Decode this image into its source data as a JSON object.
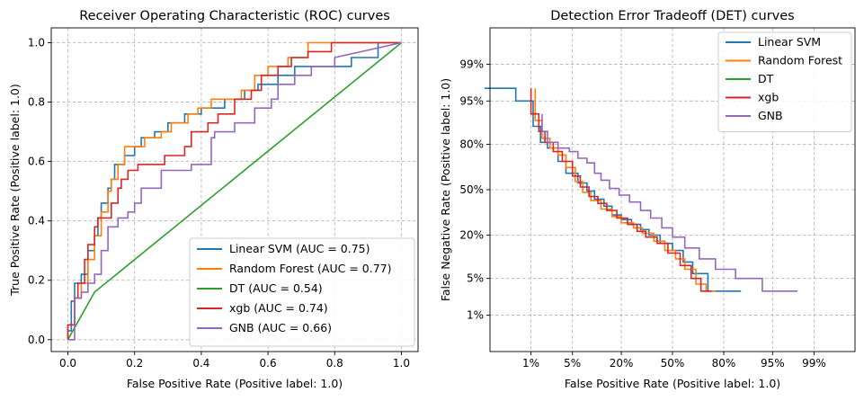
{
  "colors": {
    "Linear SVM": "#1f77b4",
    "Random Forest": "#ff7f0e",
    "DT": "#2ca02c",
    "xgb": "#d62728",
    "GNB": "#9467bd"
  },
  "chart_data": [
    {
      "type": "line",
      "title": "Receiver Operating Characteristic (ROC) curves",
      "xlabel": "False Positive Rate (Positive label: 1.0)",
      "ylabel": "True Positive Rate (Positive label: 1.0)",
      "xlim": [
        -0.05,
        1.05
      ],
      "ylim": [
        -0.04,
        1.05
      ],
      "xticks": [
        0.0,
        0.2,
        0.4,
        0.6,
        0.8,
        1.0
      ],
      "xtick_labels": [
        "0.0",
        "0.2",
        "0.4",
        "0.6",
        "0.8",
        "1.0"
      ],
      "yticks": [
        0.0,
        0.2,
        0.4,
        0.6,
        0.8,
        1.0
      ],
      "ytick_labels": [
        "0.0",
        "0.2",
        "0.4",
        "0.6",
        "0.8",
        "1.0"
      ],
      "grid": true,
      "legend_position": "lower-right",
      "series": [
        {
          "name": "Linear SVM (AUC = 0.75)",
          "color_key": "Linear SVM",
          "x": [
            0,
            0,
            0.01,
            0.01,
            0.02,
            0.02,
            0.04,
            0.04,
            0.06,
            0.06,
            0.08,
            0.08,
            0.09,
            0.09,
            0.1,
            0.1,
            0.12,
            0.12,
            0.13,
            0.13,
            0.14,
            0.14,
            0.17,
            0.17,
            0.2,
            0.2,
            0.22,
            0.22,
            0.26,
            0.26,
            0.3,
            0.3,
            0.35,
            0.35,
            0.4,
            0.4,
            0.47,
            0.47,
            0.53,
            0.53,
            0.57,
            0.57,
            0.63,
            0.63,
            0.68,
            0.68,
            0.78,
            0.78,
            0.85,
            0.85,
            0.93,
            0.93,
            1.0
          ],
          "y": [
            0,
            0.03,
            0.03,
            0.13,
            0.13,
            0.19,
            0.19,
            0.22,
            0.22,
            0.3,
            0.3,
            0.35,
            0.35,
            0.41,
            0.41,
            0.46,
            0.46,
            0.51,
            0.51,
            0.54,
            0.54,
            0.59,
            0.59,
            0.62,
            0.62,
            0.65,
            0.65,
            0.68,
            0.68,
            0.7,
            0.7,
            0.73,
            0.73,
            0.76,
            0.76,
            0.78,
            0.78,
            0.81,
            0.81,
            0.84,
            0.84,
            0.86,
            0.86,
            0.89,
            0.89,
            0.92,
            0.92,
            0.92,
            0.92,
            0.95,
            0.95,
            1.0,
            1.0
          ]
        },
        {
          "name": "Random Forest (AUC = 0.77)",
          "color_key": "Random Forest",
          "x": [
            0,
            0,
            0.02,
            0.02,
            0.04,
            0.04,
            0.06,
            0.06,
            0.08,
            0.08,
            0.1,
            0.1,
            0.12,
            0.12,
            0.13,
            0.13,
            0.15,
            0.15,
            0.17,
            0.17,
            0.21,
            0.21,
            0.23,
            0.23,
            0.28,
            0.28,
            0.31,
            0.31,
            0.36,
            0.36,
            0.39,
            0.39,
            0.43,
            0.43,
            0.48,
            0.48,
            0.52,
            0.52,
            0.56,
            0.56,
            0.6,
            0.6,
            0.66,
            0.66,
            0.72,
            0.72,
            0.8,
            0.8,
            0.86,
            0.86,
            1.0
          ],
          "y": [
            0,
            0.05,
            0.05,
            0.14,
            0.14,
            0.19,
            0.19,
            0.27,
            0.27,
            0.35,
            0.35,
            0.43,
            0.43,
            0.5,
            0.5,
            0.54,
            0.54,
            0.59,
            0.59,
            0.65,
            0.65,
            0.65,
            0.65,
            0.68,
            0.68,
            0.7,
            0.7,
            0.73,
            0.73,
            0.76,
            0.76,
            0.78,
            0.78,
            0.81,
            0.81,
            0.81,
            0.81,
            0.84,
            0.84,
            0.89,
            0.89,
            0.92,
            0.92,
            0.95,
            0.95,
            1.0,
            1.0,
            1.0,
            1.0,
            1.0,
            1.0
          ]
        },
        {
          "name": "DT (AUC = 0.54)",
          "color_key": "DT",
          "x": [
            0,
            0.08,
            1.0
          ],
          "y": [
            0,
            0.16,
            1.0
          ]
        },
        {
          "name": "xgb (AUC = 0.74)",
          "color_key": "xgb",
          "x": [
            0,
            0,
            0.02,
            0.02,
            0.03,
            0.03,
            0.05,
            0.05,
            0.06,
            0.06,
            0.08,
            0.08,
            0.09,
            0.09,
            0.13,
            0.13,
            0.15,
            0.15,
            0.16,
            0.16,
            0.18,
            0.18,
            0.21,
            0.21,
            0.23,
            0.23,
            0.29,
            0.29,
            0.35,
            0.35,
            0.37,
            0.37,
            0.42,
            0.42,
            0.45,
            0.45,
            0.5,
            0.5,
            0.55,
            0.55,
            0.58,
            0.58,
            0.63,
            0.63,
            0.67,
            0.67,
            0.72,
            0.72,
            0.79,
            0.79,
            1.0
          ],
          "y": [
            0,
            0.05,
            0.05,
            0.14,
            0.14,
            0.19,
            0.19,
            0.27,
            0.27,
            0.32,
            0.32,
            0.38,
            0.38,
            0.41,
            0.41,
            0.46,
            0.46,
            0.51,
            0.51,
            0.54,
            0.54,
            0.57,
            0.57,
            0.59,
            0.59,
            0.59,
            0.59,
            0.62,
            0.62,
            0.65,
            0.65,
            0.7,
            0.7,
            0.73,
            0.73,
            0.76,
            0.76,
            0.81,
            0.81,
            0.84,
            0.84,
            0.89,
            0.89,
            0.92,
            0.92,
            0.95,
            0.95,
            0.97,
            0.97,
            1.0,
            1.0
          ]
        },
        {
          "name": "GNB (AUC = 0.66)",
          "color_key": "GNB",
          "x": [
            0,
            0.02,
            0.02,
            0.04,
            0.04,
            0.06,
            0.06,
            0.08,
            0.08,
            0.1,
            0.1,
            0.12,
            0.12,
            0.15,
            0.15,
            0.18,
            0.18,
            0.2,
            0.2,
            0.22,
            0.22,
            0.28,
            0.28,
            0.31,
            0.31,
            0.37,
            0.37,
            0.43,
            0.43,
            0.44,
            0.44,
            0.5,
            0.5,
            0.56,
            0.56,
            0.61,
            0.61,
            0.63,
            0.63,
            0.68,
            0.68,
            0.73,
            0.73,
            0.8,
            0.8,
            1.0
          ],
          "y": [
            0,
            0,
            0.14,
            0.14,
            0.16,
            0.16,
            0.19,
            0.19,
            0.22,
            0.22,
            0.3,
            0.3,
            0.38,
            0.38,
            0.41,
            0.41,
            0.43,
            0.43,
            0.46,
            0.46,
            0.51,
            0.51,
            0.57,
            0.57,
            0.57,
            0.57,
            0.59,
            0.59,
            0.68,
            0.68,
            0.7,
            0.7,
            0.73,
            0.73,
            0.78,
            0.78,
            0.81,
            0.81,
            0.86,
            0.86,
            0.89,
            0.89,
            0.92,
            0.92,
            0.95,
            1.0
          ]
        }
      ]
    },
    {
      "type": "line",
      "title": "Detection Error Tradeoff (DET) curves",
      "xlabel": "False Positive Rate (Positive label: 1.0)",
      "ylabel": "False Negative Rate (Positive label: 1.0)",
      "scale": "normal-deviate (probit)",
      "xlim_probit": [
        -3.0,
        3.0
      ],
      "ylim_probit": [
        -3.0,
        3.0
      ],
      "xticks": [
        0.01,
        0.05,
        0.2,
        0.5,
        0.8,
        0.95,
        0.99
      ],
      "xtick_labels": [
        "1%",
        "5%",
        "20%",
        "50%",
        "80%",
        "95%",
        "99%"
      ],
      "yticks": [
        0.01,
        0.05,
        0.2,
        0.5,
        0.8,
        0.95,
        0.99
      ],
      "ytick_labels": [
        "1%",
        "5%",
        "20%",
        "50%",
        "80%",
        "95%",
        "99%"
      ],
      "grid": true,
      "legend_position": "upper-right",
      "series": [
        {
          "name": "Linear SVM",
          "color_key": "Linear SVM",
          "x": [
            0.001,
            0.005,
            0.005,
            0.011,
            0.011,
            0.015,
            0.015,
            0.02,
            0.02,
            0.03,
            0.03,
            0.04,
            0.04,
            0.06,
            0.06,
            0.08,
            0.08,
            0.1,
            0.1,
            0.13,
            0.13,
            0.16,
            0.16,
            0.2,
            0.2,
            0.25,
            0.25,
            0.3,
            0.3,
            0.35,
            0.35,
            0.42,
            0.42,
            0.5,
            0.5,
            0.57,
            0.57,
            0.63,
            0.63,
            0.72,
            0.72,
            0.82,
            0.82,
            0.87
          ],
          "y": [
            0.97,
            0.97,
            0.95,
            0.95,
            0.88,
            0.88,
            0.81,
            0.81,
            0.78,
            0.78,
            0.7,
            0.7,
            0.62,
            0.62,
            0.55,
            0.55,
            0.49,
            0.49,
            0.43,
            0.43,
            0.38,
            0.38,
            0.32,
            0.32,
            0.29,
            0.29,
            0.26,
            0.26,
            0.23,
            0.23,
            0.2,
            0.2,
            0.16,
            0.16,
            0.13,
            0.13,
            0.09,
            0.09,
            0.06,
            0.06,
            0.03,
            0.03,
            0.03,
            0.03
          ]
        },
        {
          "name": "Random Forest",
          "color_key": "Random Forest",
          "x": [
            0.012,
            0.012,
            0.016,
            0.016,
            0.022,
            0.022,
            0.03,
            0.03,
            0.04,
            0.04,
            0.055,
            0.055,
            0.07,
            0.07,
            0.09,
            0.09,
            0.12,
            0.12,
            0.16,
            0.16,
            0.2,
            0.2,
            0.26,
            0.26,
            0.31,
            0.31,
            0.38,
            0.38,
            0.45,
            0.45,
            0.52,
            0.52,
            0.58,
            0.58,
            0.65,
            0.65,
            0.71,
            0.71,
            0.76
          ],
          "y": [
            0.97,
            0.9,
            0.9,
            0.83,
            0.83,
            0.78,
            0.78,
            0.74,
            0.74,
            0.66,
            0.66,
            0.56,
            0.56,
            0.48,
            0.48,
            0.42,
            0.42,
            0.36,
            0.36,
            0.31,
            0.31,
            0.27,
            0.27,
            0.24,
            0.24,
            0.21,
            0.21,
            0.17,
            0.17,
            0.13,
            0.13,
            0.1,
            0.1,
            0.07,
            0.07,
            0.04,
            0.04,
            0.03,
            0.03
          ]
        },
        {
          "name": "DT",
          "color_key": "DT",
          "x": [
            0.94,
            0.94
          ],
          "y": [
            0.055,
            0.055
          ]
        },
        {
          "name": "xgb",
          "color_key": "xgb",
          "x": [
            0.01,
            0.01,
            0.014,
            0.014,
            0.018,
            0.018,
            0.025,
            0.025,
            0.035,
            0.035,
            0.05,
            0.05,
            0.065,
            0.065,
            0.085,
            0.085,
            0.11,
            0.11,
            0.14,
            0.14,
            0.18,
            0.18,
            0.23,
            0.23,
            0.28,
            0.28,
            0.33,
            0.33,
            0.4,
            0.4,
            0.47,
            0.47,
            0.55,
            0.55,
            0.62,
            0.62,
            0.68,
            0.68,
            0.74
          ],
          "y": [
            0.97,
            0.92,
            0.92,
            0.86,
            0.86,
            0.81,
            0.81,
            0.76,
            0.76,
            0.7,
            0.7,
            0.6,
            0.6,
            0.52,
            0.52,
            0.45,
            0.45,
            0.4,
            0.4,
            0.35,
            0.35,
            0.3,
            0.3,
            0.26,
            0.26,
            0.22,
            0.22,
            0.19,
            0.19,
            0.16,
            0.16,
            0.12,
            0.12,
            0.08,
            0.08,
            0.05,
            0.05,
            0.03,
            0.03
          ]
        },
        {
          "name": "GNB",
          "color_key": "GNB",
          "x": [
            0.016,
            0.016,
            0.02,
            0.02,
            0.03,
            0.03,
            0.045,
            0.045,
            0.06,
            0.06,
            0.08,
            0.08,
            0.1,
            0.1,
            0.12,
            0.12,
            0.15,
            0.15,
            0.19,
            0.19,
            0.24,
            0.24,
            0.3,
            0.3,
            0.36,
            0.36,
            0.43,
            0.43,
            0.5,
            0.5,
            0.58,
            0.58,
            0.67,
            0.67,
            0.76,
            0.76,
            0.85,
            0.85,
            0.93,
            0.93,
            0.98
          ],
          "y": [
            0.92,
            0.86,
            0.86,
            0.81,
            0.81,
            0.78,
            0.78,
            0.76,
            0.76,
            0.72,
            0.72,
            0.69,
            0.69,
            0.62,
            0.62,
            0.57,
            0.57,
            0.51,
            0.51,
            0.46,
            0.46,
            0.41,
            0.41,
            0.35,
            0.35,
            0.3,
            0.3,
            0.24,
            0.24,
            0.19,
            0.19,
            0.14,
            0.14,
            0.1,
            0.1,
            0.07,
            0.07,
            0.05,
            0.05,
            0.03,
            0.03
          ]
        }
      ]
    }
  ]
}
